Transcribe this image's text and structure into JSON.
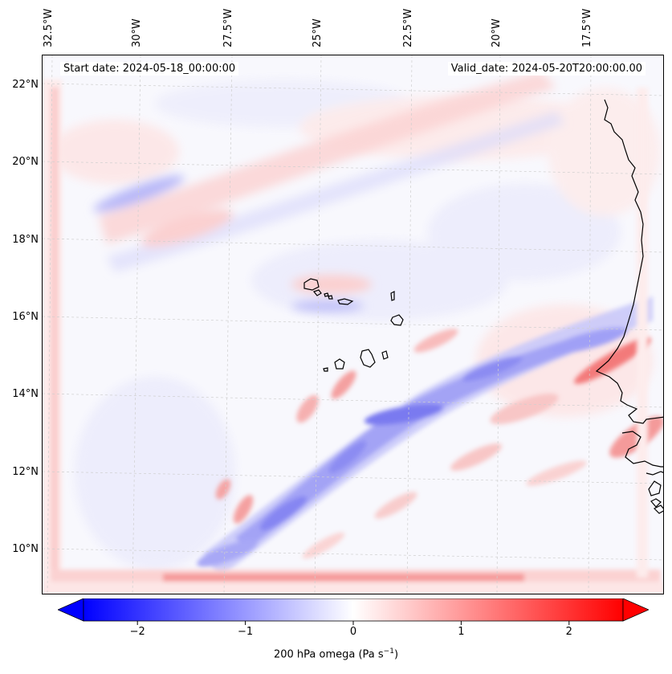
{
  "header": {
    "start_date": "Start date: 2024-05-18_00:00:00",
    "valid_date": "Valid_date: 2024-05-20T20:00:00.00"
  },
  "lon_labels": [
    "32.5°W",
    "30°W",
    "27.5°W",
    "25°W",
    "22.5°W",
    "20°W",
    "17.5°W"
  ],
  "lat_labels": [
    "22°N",
    "20°N",
    "18°N",
    "16°N",
    "14°N",
    "12°N",
    "10°N"
  ],
  "colorbar": {
    "label_prefix": "200 hPa omega (Pa s",
    "label_sup": "−1",
    "label_suffix": ")",
    "ticks": [
      "−2",
      "−1",
      "0",
      "1",
      "2"
    ],
    "tick_values": [
      -2,
      -1,
      0,
      1,
      2
    ],
    "range": [
      -2.5,
      2.5
    ],
    "colors": {
      "min": "#0000ff",
      "mid": "#ffffff",
      "max": "#ff0000"
    }
  },
  "map": {
    "coastline_color": "#000000",
    "gridline_color": "#cccccc",
    "features": [
      "West African coastline",
      "Cape Verde islands"
    ]
  }
}
